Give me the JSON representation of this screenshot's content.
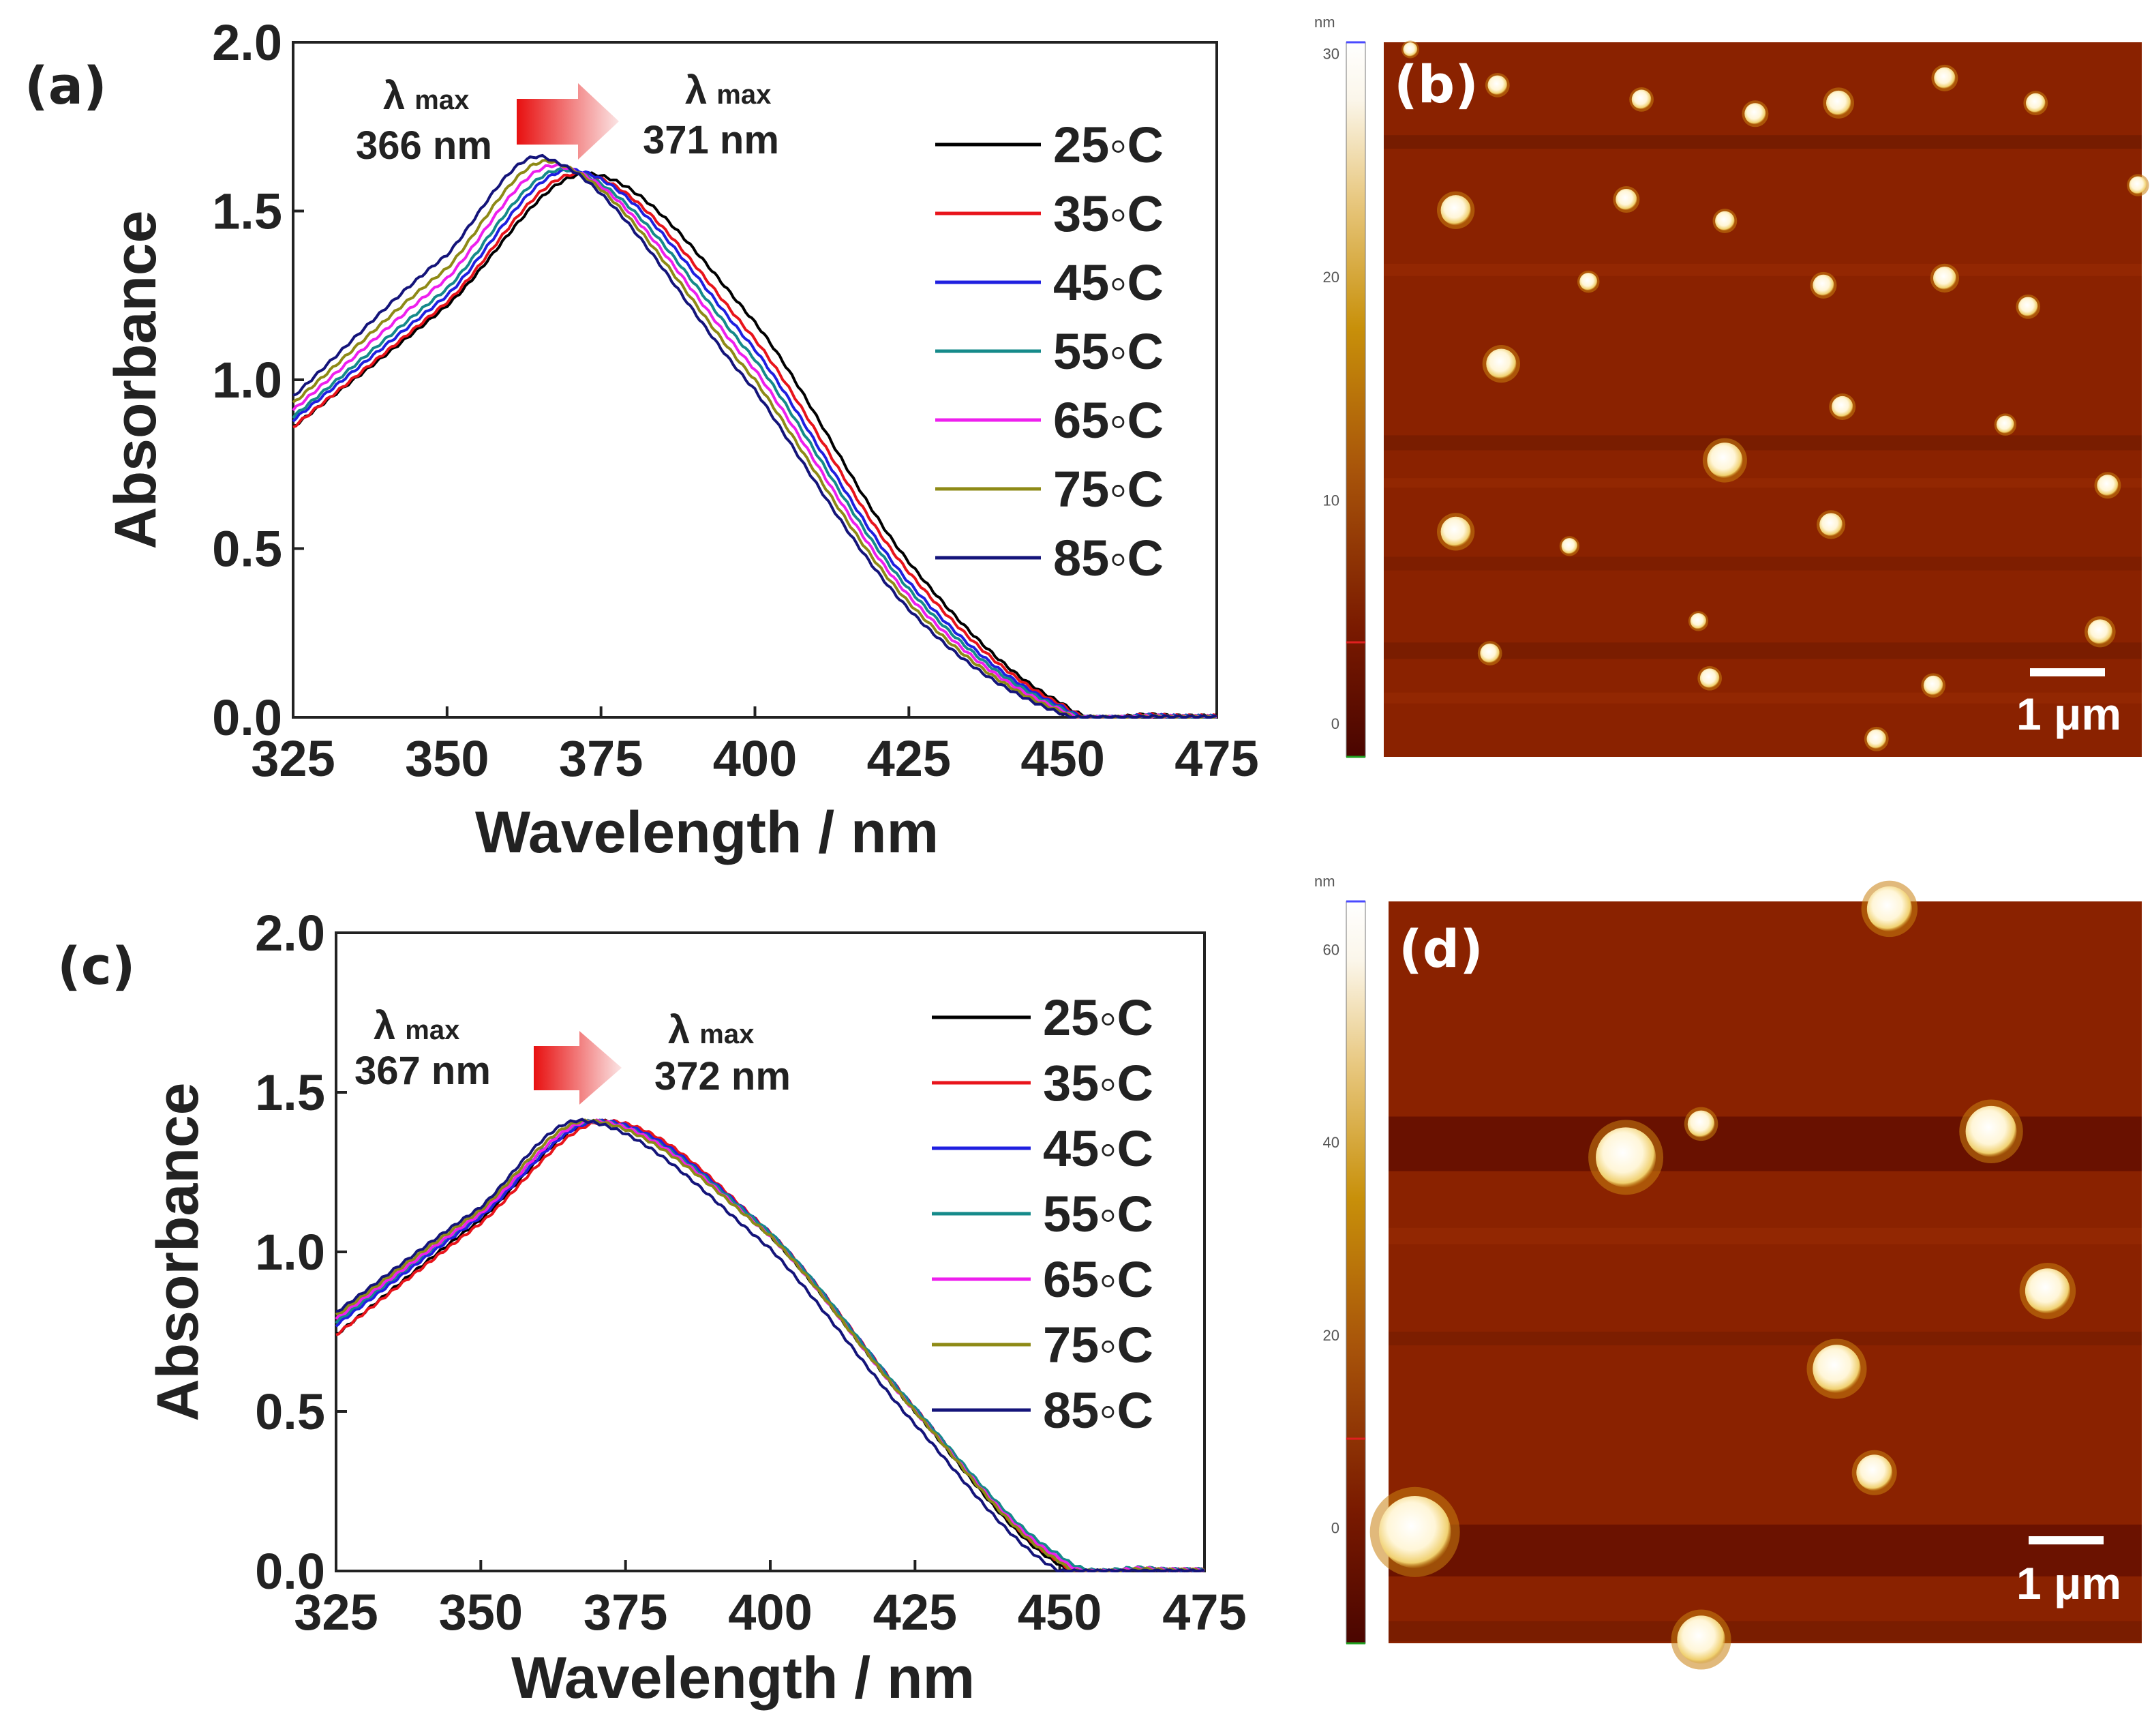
{
  "chart_data": [
    {
      "panel": "(a)",
      "type": "line",
      "xlabel": "Wavelength / nm",
      "ylabel": "Absorbance",
      "xlim": [
        325,
        475
      ],
      "ylim": [
        0.0,
        2.0
      ],
      "xticks": [
        "325",
        "350",
        "375",
        "400",
        "425",
        "450",
        "475"
      ],
      "yticks": [
        "0.0",
        "0.5",
        "1.0",
        "1.5",
        "2.0"
      ],
      "annotation": {
        "left_symbol": "λ",
        "left_sub": "max",
        "left_value": "366 nm",
        "right_symbol": "λ",
        "right_sub": "max",
        "right_value": "371 nm"
      },
      "series": [
        {
          "name": "25◦C",
          "color": "#000000",
          "peak_x": 373,
          "peak_y": 1.61,
          "v325": 0.86,
          "v350": 1.22,
          "v400": 1.17,
          "v425": 0.46,
          "v450": 0.04
        },
        {
          "name": "35◦C",
          "color": "#e8141b",
          "peak_x": 372,
          "peak_y": 1.61,
          "v325": 0.86,
          "v350": 1.23,
          "v400": 1.12,
          "v425": 0.43,
          "v450": 0.035
        },
        {
          "name": "45◦C",
          "color": "#1f1fe0",
          "peak_x": 371,
          "peak_y": 1.62,
          "v325": 0.88,
          "v350": 1.25,
          "v400": 1.09,
          "v425": 0.4,
          "v450": 0.03
        },
        {
          "name": "55◦C",
          "color": "#158a8a",
          "peak_x": 370,
          "peak_y": 1.62,
          "v325": 0.89,
          "v350": 1.27,
          "v400": 1.06,
          "v425": 0.38,
          "v450": 0.025
        },
        {
          "name": "65◦C",
          "color": "#ee1fee",
          "peak_x": 369,
          "peak_y": 1.63,
          "v325": 0.91,
          "v350": 1.3,
          "v400": 1.03,
          "v425": 0.36,
          "v450": 0.02
        },
        {
          "name": "75◦C",
          "color": "#8e8a16",
          "peak_x": 368,
          "peak_y": 1.64,
          "v325": 0.93,
          "v350": 1.33,
          "v400": 1.0,
          "v425": 0.34,
          "v450": 0.015
        },
        {
          "name": "85◦C",
          "color": "#14147a",
          "peak_x": 367,
          "peak_y": 1.65,
          "v325": 0.95,
          "v350": 1.37,
          "v400": 0.97,
          "v425": 0.32,
          "v450": 0.01
        }
      ]
    },
    {
      "panel": "(c)",
      "type": "line",
      "xlabel": "Wavelength / nm",
      "ylabel": "Absorbance",
      "xlim": [
        325,
        475
      ],
      "ylim": [
        0.0,
        2.0
      ],
      "xticks": [
        "325",
        "350",
        "375",
        "400",
        "425",
        "450",
        "475"
      ],
      "yticks": [
        "0.0",
        "0.5",
        "1.0",
        "1.5",
        "2.0"
      ],
      "annotation": {
        "left_symbol": "λ",
        "left_sub": "max",
        "left_value": "367 nm",
        "right_symbol": "λ",
        "right_sub": "max",
        "right_value": "372 nm"
      },
      "series": [
        {
          "name": "25◦C",
          "color": "#000000",
          "peak_x": 371,
          "peak_y": 1.41,
          "v325": 0.74,
          "v350": 1.1,
          "v400": 1.05,
          "v425": 0.5,
          "v450": 0.02
        },
        {
          "name": "35◦C",
          "color": "#e8141b",
          "peak_x": 372,
          "peak_y": 1.41,
          "v325": 0.74,
          "v350": 1.09,
          "v400": 1.06,
          "v425": 0.51,
          "v450": 0.03
        },
        {
          "name": "45◦C",
          "color": "#1f1fe0",
          "peak_x": 371,
          "peak_y": 1.41,
          "v325": 0.77,
          "v350": 1.11,
          "v400": 1.06,
          "v425": 0.51,
          "v450": 0.04
        },
        {
          "name": "55◦C",
          "color": "#158a8a",
          "peak_x": 370,
          "peak_y": 1.41,
          "v325": 0.78,
          "v350": 1.12,
          "v400": 1.06,
          "v425": 0.51,
          "v450": 0.05
        },
        {
          "name": "65◦C",
          "color": "#ee1fee",
          "peak_x": 370,
          "peak_y": 1.41,
          "v325": 0.79,
          "v350": 1.12,
          "v400": 1.05,
          "v425": 0.5,
          "v450": 0.04
        },
        {
          "name": "75◦C",
          "color": "#8e8a16",
          "peak_x": 369,
          "peak_y": 1.41,
          "v325": 0.8,
          "v350": 1.13,
          "v400": 1.05,
          "v425": 0.5,
          "v450": 0.03
        },
        {
          "name": "85◦C",
          "color": "#14147a",
          "peak_x": 368,
          "peak_y": 1.41,
          "v325": 0.81,
          "v350": 1.14,
          "v400": 1.01,
          "v425": 0.46,
          "v450": 0.0
        }
      ]
    }
  ],
  "afm_images": [
    {
      "panel": "(b)",
      "colorbar_unit": "nm",
      "colorbar_ticks": [
        "30",
        "20",
        "10",
        "0"
      ],
      "colorbar_range": [
        -1.5,
        30.5
      ],
      "scale_bar": "1 μm",
      "particles": [
        {
          "u": 0.035,
          "v": 0.01,
          "s": 0.4
        },
        {
          "u": 0.15,
          "v": 0.06,
          "s": 0.55
        },
        {
          "u": 0.34,
          "v": 0.08,
          "s": 0.55
        },
        {
          "u": 0.49,
          "v": 0.1,
          "s": 0.6
        },
        {
          "u": 0.6,
          "v": 0.085,
          "s": 0.7
        },
        {
          "u": 0.74,
          "v": 0.05,
          "s": 0.6
        },
        {
          "u": 0.86,
          "v": 0.085,
          "s": 0.55
        },
        {
          "u": 0.095,
          "v": 0.235,
          "s": 0.85
        },
        {
          "u": 0.32,
          "v": 0.22,
          "s": 0.6
        },
        {
          "u": 0.45,
          "v": 0.25,
          "s": 0.55
        },
        {
          "u": 0.27,
          "v": 0.335,
          "s": 0.5
        },
        {
          "u": 0.58,
          "v": 0.34,
          "s": 0.6
        },
        {
          "u": 0.74,
          "v": 0.33,
          "s": 0.65
        },
        {
          "u": 0.85,
          "v": 0.37,
          "s": 0.55
        },
        {
          "u": 0.155,
          "v": 0.45,
          "s": 0.85
        },
        {
          "u": 0.605,
          "v": 0.51,
          "s": 0.6
        },
        {
          "u": 0.82,
          "v": 0.535,
          "s": 0.5
        },
        {
          "u": 0.45,
          "v": 0.585,
          "s": 1.0
        },
        {
          "u": 0.955,
          "v": 0.62,
          "s": 0.6
        },
        {
          "u": 0.095,
          "v": 0.685,
          "s": 0.85
        },
        {
          "u": 0.59,
          "v": 0.675,
          "s": 0.65
        },
        {
          "u": 0.245,
          "v": 0.705,
          "s": 0.45
        },
        {
          "u": 0.415,
          "v": 0.81,
          "s": 0.45
        },
        {
          "u": 0.14,
          "v": 0.855,
          "s": 0.55
        },
        {
          "u": 0.43,
          "v": 0.89,
          "s": 0.55
        },
        {
          "u": 0.725,
          "v": 0.9,
          "s": 0.55
        },
        {
          "u": 0.945,
          "v": 0.825,
          "s": 0.7
        },
        {
          "u": 0.65,
          "v": 0.975,
          "s": 0.55
        },
        {
          "u": 0.995,
          "v": 0.2,
          "s": 0.5
        }
      ]
    },
    {
      "panel": "(d)",
      "colorbar_unit": "nm",
      "colorbar_ticks": [
        "60",
        "40",
        "20",
        "0"
      ],
      "colorbar_range": [
        -12,
        65
      ],
      "scale_bar": "1 μm",
      "particles": [
        {
          "u": 0.665,
          "v": 0.01,
          "s": 0.75
        },
        {
          "u": 0.315,
          "v": 0.345,
          "s": 1.0
        },
        {
          "u": 0.415,
          "v": 0.3,
          "s": 0.45
        },
        {
          "u": 0.8,
          "v": 0.31,
          "s": 0.85
        },
        {
          "u": 0.875,
          "v": 0.525,
          "s": 0.75
        },
        {
          "u": 0.595,
          "v": 0.63,
          "s": 0.8
        },
        {
          "u": 0.645,
          "v": 0.77,
          "s": 0.6
        },
        {
          "u": 0.035,
          "v": 0.85,
          "s": 1.2
        },
        {
          "u": 0.415,
          "v": 0.995,
          "s": 0.8
        }
      ]
    }
  ]
}
